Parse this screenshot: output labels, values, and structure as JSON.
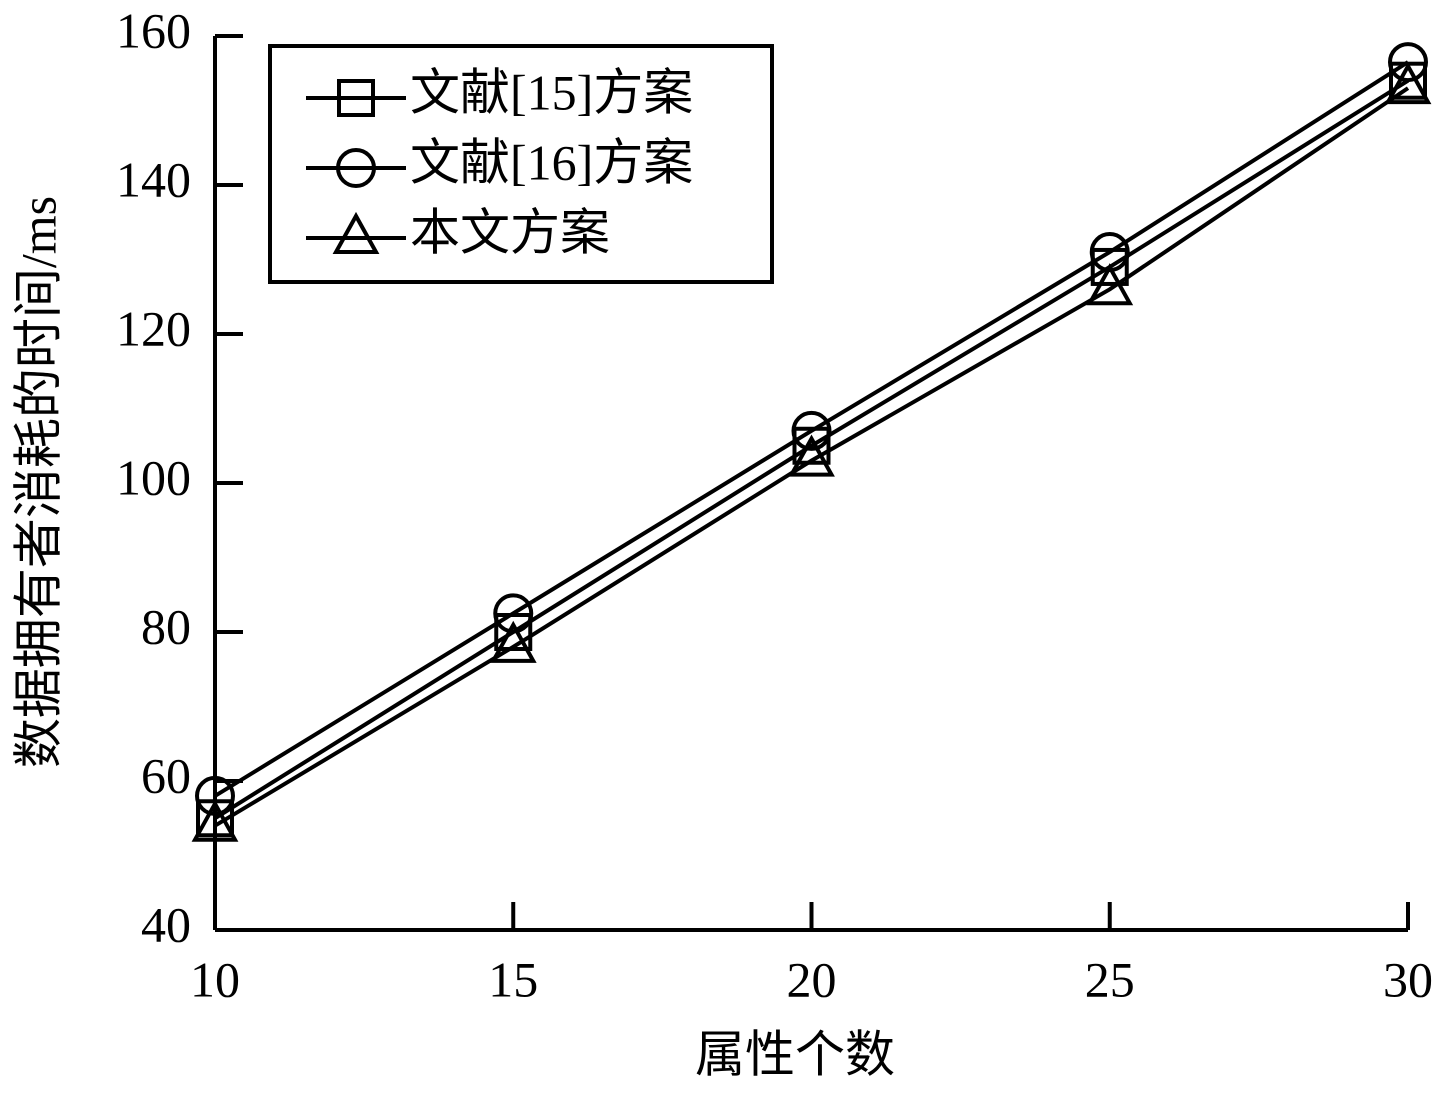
{
  "chart_data": {
    "type": "line",
    "x_label": "属性个数",
    "y_label": "数据拥有者消耗的时间/ms",
    "x": [
      10,
      15,
      20,
      25,
      30
    ],
    "xlim": [
      10,
      30
    ],
    "xticks": [
      10,
      15,
      20,
      25,
      30
    ],
    "ylim": [
      40,
      160
    ],
    "yticks": [
      40,
      60,
      80,
      100,
      120,
      140,
      160
    ],
    "legend_position": "upper left",
    "series": [
      {
        "name": "文献[15]方案",
        "color": "#000000",
        "marker": "square",
        "values": [
          55,
          80,
          105,
          129,
          154
        ]
      },
      {
        "name": "文献[16]方案",
        "color": "#000000",
        "marker": "circle",
        "values": [
          58,
          82.5,
          107,
          131,
          156.5
        ]
      },
      {
        "name": "本文方案",
        "color": "#000000",
        "marker": "triangle",
        "values": [
          54,
          78,
          103,
          126,
          153
        ]
      }
    ]
  }
}
